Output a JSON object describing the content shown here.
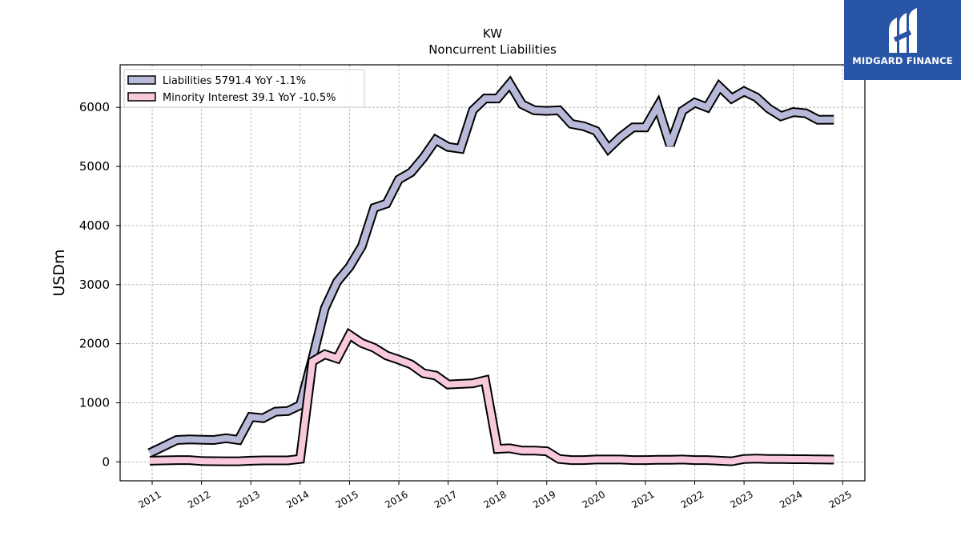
{
  "brand": {
    "name": "MIDGARD FINANCE",
    "color": "#2855a5"
  },
  "chart_data": {
    "type": "line",
    "title": "KW",
    "subtitle": "Noncurrent  Liabilities",
    "ylabel": "USDm",
    "xlabel": "",
    "ylim": [
      -320,
      6720
    ],
    "xlim": [
      2010.35,
      2025.45
    ],
    "yticks": [
      0,
      1000,
      2000,
      3000,
      4000,
      5000,
      6000
    ],
    "xticks": [
      "2011",
      "2012",
      "2013",
      "2014",
      "2015",
      "2016",
      "2017",
      "2018",
      "2019",
      "2020",
      "2021",
      "2022",
      "2023",
      "2024",
      "2025"
    ],
    "grid": true,
    "legend_position": "top-left",
    "series": [
      {
        "name": "Liabilities  5791.4 YoY -1.1%",
        "color": "#b8b8d8",
        "x": [
          2010.95,
          2011.5,
          2011.75,
          2012.25,
          2012.5,
          2012.75,
          2013.0,
          2013.25,
          2013.5,
          2013.75,
          2014.0,
          2014.25,
          2014.5,
          2014.75,
          2015.0,
          2015.25,
          2015.5,
          2015.75,
          2016.0,
          2016.25,
          2016.5,
          2016.75,
          2017.0,
          2017.25,
          2017.5,
          2017.75,
          2018.0,
          2018.25,
          2018.5,
          2018.75,
          2019.0,
          2019.25,
          2019.5,
          2019.75,
          2020.0,
          2020.25,
          2020.5,
          2020.75,
          2021.0,
          2021.25,
          2021.5,
          2021.75,
          2022.0,
          2022.25,
          2022.5,
          2022.75,
          2023.0,
          2023.25,
          2023.5,
          2023.75,
          2024.0,
          2024.25,
          2024.5,
          2024.82
        ],
        "y": [
          150,
          370,
          380,
          370,
          400,
          370,
          760,
          740,
          850,
          860,
          960,
          1750,
          2600,
          3050,
          3300,
          3650,
          4300,
          4370,
          4780,
          4900,
          5150,
          5450,
          5330,
          5300,
          5950,
          6150,
          6150,
          6400,
          6050,
          5950,
          5940,
          5950,
          5720,
          5680,
          5600,
          5300,
          5500,
          5660,
          5660,
          6020,
          5360,
          5940,
          6080,
          6000,
          6350,
          6150,
          6270,
          6170,
          5980,
          5850,
          5920,
          5900,
          5790,
          5791.4
        ]
      },
      {
        "name": "Minority Interest  39.1 YoY -10.5%",
        "color": "#f8c8dc",
        "x": [
          2010.95,
          2011.5,
          2011.75,
          2012.0,
          2012.5,
          2012.75,
          2013.0,
          2013.25,
          2013.5,
          2013.75,
          2014.0,
          2014.25,
          2014.5,
          2014.75,
          2015.0,
          2015.25,
          2015.5,
          2015.75,
          2016.0,
          2016.25,
          2016.5,
          2016.75,
          2017.0,
          2017.25,
          2017.5,
          2017.75,
          2018.0,
          2018.25,
          2018.5,
          2018.75,
          2019.0,
          2019.25,
          2019.5,
          2019.75,
          2020.0,
          2020.25,
          2020.5,
          2020.75,
          2021.0,
          2021.25,
          2021.5,
          2021.75,
          2022.0,
          2022.25,
          2022.5,
          2022.75,
          2023.0,
          2023.25,
          2023.5,
          2023.75,
          2024.0,
          2024.25,
          2024.5,
          2024.82
        ],
        "y": [
          20,
          30,
          30,
          15,
          10,
          10,
          20,
          25,
          25,
          25,
          50,
          1700,
          1820,
          1750,
          2150,
          2010,
          1930,
          1800,
          1730,
          1650,
          1500,
          1460,
          1310,
          1320,
          1330,
          1380,
          220,
          230,
          190,
          190,
          180,
          50,
          30,
          30,
          40,
          40,
          40,
          30,
          30,
          35,
          35,
          40,
          30,
          30,
          20,
          10,
          50,
          55,
          50,
          50,
          45,
          45,
          42,
          39.1
        ]
      }
    ]
  }
}
